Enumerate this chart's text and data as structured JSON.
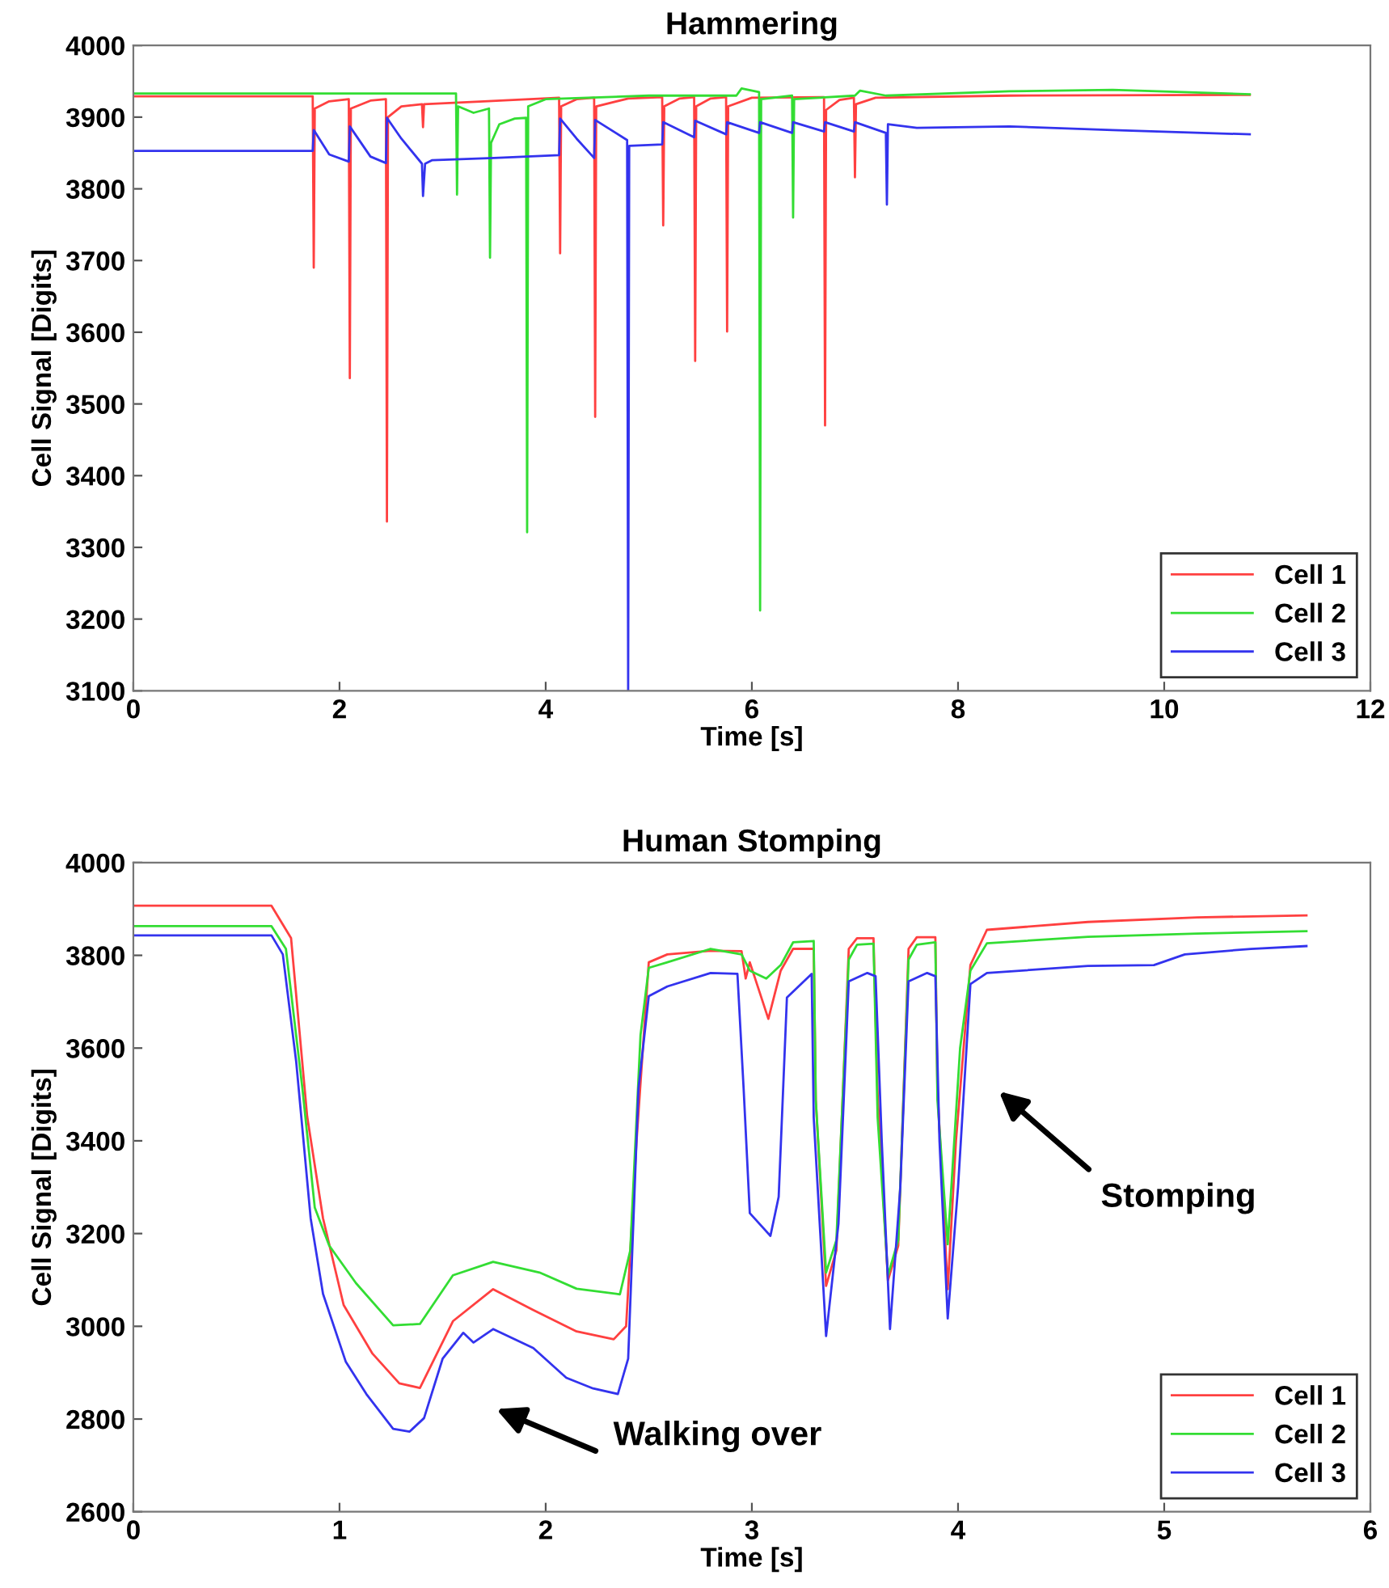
{
  "chart_data": [
    {
      "type": "line",
      "title": "Hammering",
      "xlabel": "Time [s]",
      "ylabel": "Cell Signal [Digits]",
      "xlim": [
        0,
        12
      ],
      "ylim": [
        3100,
        4000
      ],
      "xticks": [
        0,
        2,
        4,
        6,
        8,
        10,
        12
      ],
      "yticks": [
        3100,
        3200,
        3300,
        3400,
        3500,
        3600,
        3700,
        3800,
        3900,
        4000
      ],
      "legend": "bottom right",
      "grid": false,
      "marker": "none",
      "line_style": "solid",
      "series": [
        {
          "name": "Cell 1",
          "color": "#ff4040",
          "x": [
            0,
            1.74,
            1.75,
            1.76,
            1.9,
            2.09,
            2.1,
            2.11,
            2.3,
            2.45,
            2.46,
            2.47,
            2.6,
            2.8,
            2.81,
            2.82,
            3.4,
            4.13,
            4.14,
            4.15,
            4.3,
            4.47,
            4.48,
            4.49,
            4.8,
            5.13,
            5.14,
            5.15,
            5.3,
            5.44,
            5.45,
            5.46,
            5.6,
            5.75,
            5.76,
            5.77,
            6.0,
            6.7,
            6.71,
            6.72,
            6.85,
            6.99,
            7.0,
            7.01,
            7.2,
            8.5,
            10.83
          ],
          "values": [
            3929,
            3929,
            3690,
            3912,
            3922,
            3925,
            3536,
            3912,
            3923,
            3925,
            3336,
            3900,
            3915,
            3918,
            3886,
            3918,
            3922,
            3927,
            3710,
            3915,
            3925,
            3927,
            3482,
            3915,
            3926,
            3928,
            3749,
            3915,
            3926,
            3928,
            3560,
            3915,
            3926,
            3928,
            3601,
            3915,
            3927,
            3928,
            3470,
            3910,
            3924,
            3927,
            3816,
            3918,
            3927,
            3930,
            3931
          ]
        },
        {
          "name": "Cell 2",
          "color": "#33dd33",
          "x": [
            0,
            3.13,
            3.14,
            3.15,
            3.3,
            3.45,
            3.46,
            3.47,
            3.55,
            3.7,
            3.81,
            3.82,
            3.83,
            4.0,
            5.0,
            5.85,
            5.9,
            6.07,
            6.08,
            6.09,
            6.39,
            6.4,
            6.41,
            7.0,
            7.05,
            7.3,
            8.5,
            9.5,
            10.83
          ],
          "values": [
            3933,
            3933,
            3792,
            3915,
            3906,
            3912,
            3704,
            3864,
            3890,
            3898,
            3899,
            3321,
            3915,
            3925,
            3930,
            3930,
            3940,
            3935,
            3212,
            3925,
            3930,
            3760,
            3925,
            3930,
            3937,
            3930,
            3936,
            3938,
            3932
          ]
        },
        {
          "name": "Cell 3",
          "color": "#3333ee",
          "x": [
            0,
            1.74,
            1.75,
            1.9,
            2.09,
            2.1,
            2.3,
            2.45,
            2.46,
            2.6,
            2.8,
            2.81,
            2.83,
            2.9,
            3.5,
            4.13,
            4.14,
            4.3,
            4.47,
            4.48,
            4.79,
            4.8,
            4.81,
            5.13,
            5.14,
            5.44,
            5.45,
            5.75,
            5.76,
            6.07,
            6.08,
            6.39,
            6.4,
            6.7,
            6.71,
            6.99,
            7.0,
            7.3,
            7.31,
            7.32,
            7.6,
            8.5,
            9.5,
            10.83
          ],
          "values": [
            3853,
            3853,
            3882,
            3848,
            3838,
            3887,
            3845,
            3836,
            3899,
            3870,
            3835,
            3790,
            3835,
            3840,
            3843,
            3847,
            3898,
            3870,
            3843,
            3896,
            3868,
            3100,
            3860,
            3862,
            3893,
            3872,
            3895,
            3876,
            3893,
            3878,
            3893,
            3878,
            3893,
            3880,
            3893,
            3880,
            3893,
            3878,
            3778,
            3890,
            3885,
            3887,
            3882,
            3876
          ]
        }
      ]
    },
    {
      "type": "line",
      "title": "Human Stomping",
      "xlabel": "Time [s]",
      "ylabel": "Cell Signal [Digits]",
      "xlim": [
        0,
        6
      ],
      "ylim": [
        2600,
        4000
      ],
      "xticks": [
        0,
        1,
        2,
        3,
        4,
        5,
        6
      ],
      "yticks": [
        2600,
        2800,
        3000,
        3200,
        3400,
        3600,
        3800,
        4000
      ],
      "legend": "bottom right",
      "grid": false,
      "marker": "none",
      "line_style": "solid",
      "annotations": [
        "Walking over",
        "Stomping"
      ],
      "series": [
        {
          "name": "Cell 1",
          "color": "#ff4040",
          "x": [
            0,
            0.67,
            0.765,
            0.843,
            0.92,
            1.02,
            1.16,
            1.29,
            1.39,
            1.55,
            1.745,
            1.94,
            2.15,
            2.33,
            2.39,
            2.44,
            2.5,
            2.59,
            2.8,
            2.95,
            2.97,
            2.99,
            3.08,
            3.14,
            3.2,
            3.3,
            3.31,
            3.36,
            3.41,
            3.47,
            3.51,
            3.59,
            3.61,
            3.66,
            3.71,
            3.76,
            3.8,
            3.89,
            3.9,
            3.95,
            3.99,
            4.06,
            4.14,
            4.63,
            5.16,
            5.69
          ],
          "values": [
            3907,
            3907,
            3837,
            3453,
            3233,
            3046,
            2941,
            2877,
            2867,
            3011,
            3080,
            3035,
            2989,
            2972,
            3000,
            3395,
            3785,
            3802,
            3810,
            3809,
            3750,
            3785,
            3663,
            3767,
            3814,
            3814,
            3488,
            3087,
            3164,
            3814,
            3837,
            3837,
            3500,
            3099,
            3174,
            3814,
            3839,
            3839,
            3513,
            3080,
            3400,
            3779,
            3855,
            3872,
            3882,
            3886
          ]
        },
        {
          "name": "Cell 2",
          "color": "#33dd33",
          "x": [
            0,
            0.67,
            0.74,
            0.82,
            0.88,
            0.95,
            1.08,
            1.26,
            1.39,
            1.55,
            1.745,
            1.97,
            2.15,
            2.36,
            2.41,
            2.46,
            2.5,
            2.59,
            2.8,
            2.95,
            2.99,
            3.07,
            3.14,
            3.2,
            3.3,
            3.31,
            3.36,
            3.41,
            3.47,
            3.51,
            3.59,
            3.61,
            3.66,
            3.71,
            3.76,
            3.8,
            3.89,
            3.9,
            3.95,
            4.01,
            4.06,
            4.14,
            4.63,
            5.16,
            5.69
          ],
          "values": [
            3863,
            3863,
            3814,
            3513,
            3256,
            3174,
            3093,
            3002,
            3005,
            3110,
            3139,
            3116,
            3081,
            3069,
            3163,
            3628,
            3773,
            3785,
            3814,
            3802,
            3767,
            3750,
            3779,
            3828,
            3831,
            3488,
            3116,
            3186,
            3791,
            3823,
            3825,
            3450,
            3110,
            3186,
            3791,
            3823,
            3828,
            3488,
            3177,
            3600,
            3767,
            3826,
            3840,
            3847,
            3852
          ]
        },
        {
          "name": "Cell 3",
          "color": "#3333ee",
          "x": [
            0,
            0.67,
            0.725,
            0.79,
            0.86,
            0.92,
            1.03,
            1.13,
            1.26,
            1.34,
            1.41,
            1.5,
            1.6,
            1.65,
            1.745,
            1.94,
            2.1,
            2.23,
            2.35,
            2.4,
            2.45,
            2.5,
            2.59,
            2.8,
            2.93,
            2.96,
            2.99,
            3.09,
            3.13,
            3.17,
            3.29,
            3.3,
            3.36,
            3.42,
            3.47,
            3.56,
            3.6,
            3.63,
            3.67,
            3.72,
            3.76,
            3.85,
            3.89,
            3.91,
            3.95,
            4.0,
            4.06,
            4.14,
            4.63,
            4.95,
            5.1,
            5.42,
            5.69
          ],
          "values": [
            3843,
            3843,
            3802,
            3570,
            3233,
            3070,
            2924,
            2854,
            2779,
            2773,
            2802,
            2930,
            2986,
            2965,
            2994,
            2953,
            2889,
            2866,
            2854,
            2930,
            3512,
            3712,
            3733,
            3762,
            3760,
            3513,
            3244,
            3195,
            3279,
            3709,
            3760,
            3450,
            2979,
            3221,
            3744,
            3762,
            3755,
            3400,
            2994,
            3300,
            3744,
            3762,
            3755,
            3400,
            3017,
            3300,
            3738,
            3762,
            3777,
            3779,
            3802,
            3814,
            3820
          ]
        }
      ]
    }
  ]
}
